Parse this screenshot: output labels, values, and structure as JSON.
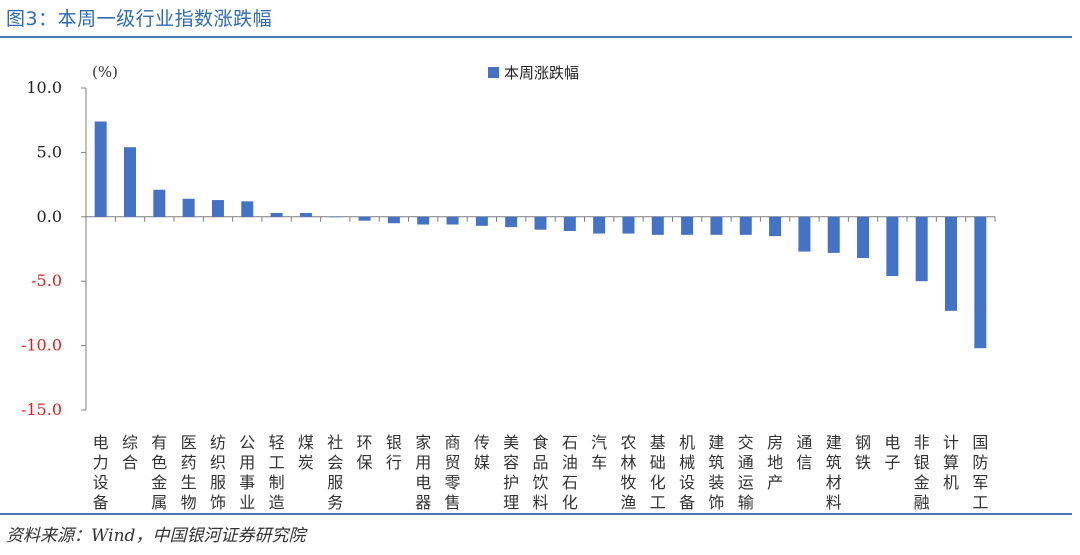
{
  "header": {
    "title": "图3：本周一级行业指数涨跌幅"
  },
  "footer": {
    "source": "资料来源：Wind，中国银河证券研究院"
  },
  "colors": {
    "accent": "#2e6bb4",
    "bar": "#4472c4",
    "negative_tick": "#e02020",
    "rule": "#4b79b5"
  },
  "chart_data": {
    "type": "bar",
    "title": "",
    "unit_label": "(%)",
    "legend": [
      "本周涨跌幅"
    ],
    "legend_position": "top-center",
    "ylim": [
      -15,
      10
    ],
    "yticks": [
      10,
      5,
      0,
      -5,
      -10,
      -15
    ],
    "ytick_labels": [
      "10.0",
      "5.0",
      "0.0",
      "-5.0",
      "-10.0",
      "-15.0"
    ],
    "categories": [
      "电力设备",
      "综合",
      "有色金属",
      "医药生物",
      "纺织服饰",
      "公用事业",
      "轻工制造",
      "煤炭",
      "社会服务",
      "环保",
      "银行",
      "家用电器",
      "商贸零售",
      "传媒",
      "美容护理",
      "食品饮料",
      "石油石化",
      "汽车",
      "农林牧渔",
      "基础化工",
      "机械设备",
      "建筑装饰",
      "交通运输",
      "房地产",
      "通信",
      "建筑材料",
      "钢铁",
      "电子",
      "非银金融",
      "计算机",
      "国防军工"
    ],
    "series": [
      {
        "name": "本周涨跌幅",
        "values": [
          7.4,
          5.4,
          2.1,
          1.4,
          1.3,
          1.2,
          0.3,
          0.3,
          0.0,
          -0.3,
          -0.5,
          -0.6,
          -0.6,
          -0.7,
          -0.8,
          -1.0,
          -1.1,
          -1.3,
          -1.3,
          -1.4,
          -1.4,
          -1.4,
          -1.4,
          -1.5,
          -2.7,
          -2.8,
          -3.2,
          -4.6,
          -5.0,
          -7.3,
          -10.2
        ]
      }
    ],
    "grid": false
  }
}
